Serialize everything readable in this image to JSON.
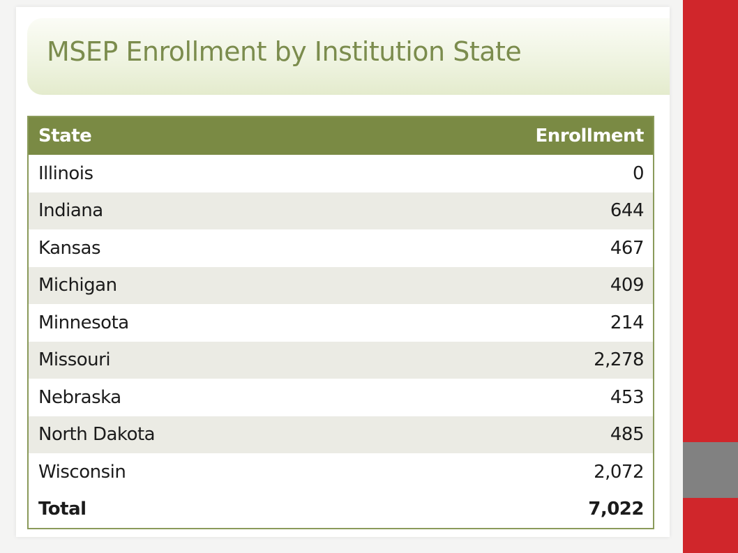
{
  "title": "MSEP Enrollment by Institution State",
  "table": {
    "headers": [
      "State",
      "Enrollment"
    ],
    "rows": [
      {
        "state": "Illinois",
        "enrollment": "0"
      },
      {
        "state": "Indiana",
        "enrollment": "644"
      },
      {
        "state": "Kansas",
        "enrollment": "467"
      },
      {
        "state": "Michigan",
        "enrollment": "409"
      },
      {
        "state": "Minnesota",
        "enrollment": "214"
      },
      {
        "state": "Missouri",
        "enrollment": "2,278"
      },
      {
        "state": "Nebraska",
        "enrollment": "453"
      },
      {
        "state": "North Dakota",
        "enrollment": "485"
      },
      {
        "state": "Wisconsin",
        "enrollment": "2,072"
      }
    ],
    "total": {
      "label": "Total",
      "value": "7,022"
    }
  },
  "colors": {
    "header_bg": "#7a8a44",
    "title_color": "#7b8c4d",
    "alt_row_bg": "#ebebe4",
    "accent_red": "#d0262b",
    "accent_gray": "#818181"
  }
}
